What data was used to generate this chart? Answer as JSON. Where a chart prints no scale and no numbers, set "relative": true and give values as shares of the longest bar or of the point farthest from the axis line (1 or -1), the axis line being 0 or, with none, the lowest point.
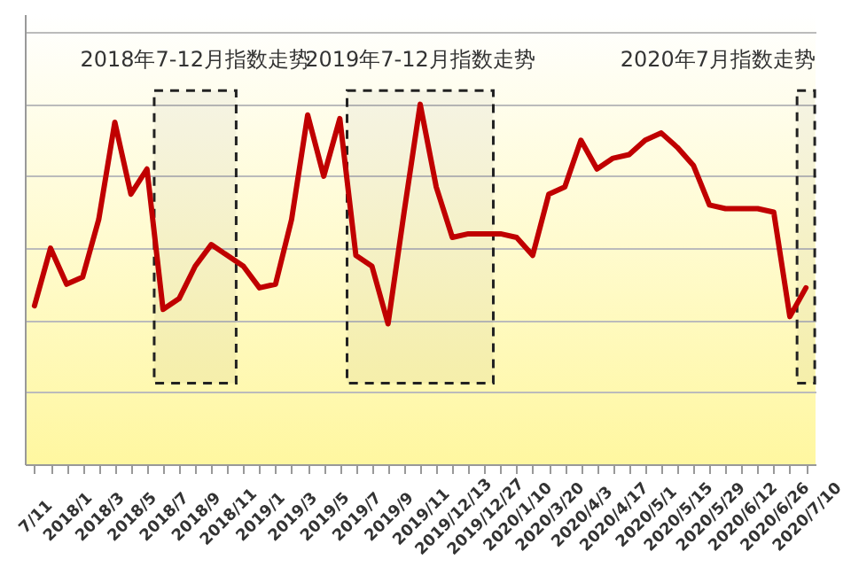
{
  "chart_data": {
    "type": "line",
    "relative": true,
    "grid": "y",
    "marker": "none",
    "line_style": "solid",
    "categories": [
      "7/11",
      null,
      "2018/1",
      null,
      "2018/3",
      null,
      "2018/5",
      null,
      "2018/7",
      null,
      "2018/9",
      null,
      "2018/11",
      null,
      "2019/1",
      null,
      "2019/3",
      null,
      "2019/5",
      null,
      "2019/7",
      null,
      "2019/9",
      null,
      "2019/11",
      null,
      "2019/12/13",
      null,
      "2019/12/27",
      null,
      "2020/1/10",
      null,
      "2020/3/20",
      null,
      "2020/4/3",
      null,
      "2020/4/17",
      null,
      "2020/5/1",
      null,
      "2020/5/15",
      null,
      "2020/5/29",
      null,
      "2020/6/12",
      null,
      "2020/6/26",
      null,
      "2020/7/10"
    ],
    "series": [
      {
        "color": "#c00000",
        "values": [
          0.44,
          0.6,
          0.5,
          0.52,
          0.68,
          0.95,
          0.75,
          0.82,
          0.43,
          0.46,
          0.55,
          0.61,
          0.58,
          0.55,
          0.49,
          0.5,
          0.68,
          0.97,
          0.8,
          0.96,
          0.58,
          0.55,
          0.39,
          0.7,
          1,
          0.77,
          0.63,
          0.64,
          0.64,
          0.64,
          0.63,
          0.58,
          0.75,
          0.77,
          0.9,
          0.82,
          0.85,
          0.86,
          0.9,
          0.92,
          0.88,
          0.83,
          0.72,
          0.71,
          0.71,
          0.71,
          0.7,
          0.41,
          0.49
        ]
      }
    ],
    "bands": [
      {
        "axis": "x",
        "from": "2018/7",
        "to": "2018/11",
        "label": "2018年7-12月指数走势"
      },
      {
        "axis": "x",
        "from": "2019/7",
        "to": "2019/12/27",
        "label": "2019年7-12月指数走势"
      },
      {
        "axis": "x",
        "from": "2020/7/10",
        "to": "2020/7/10",
        "label": "2020年7月指数走势"
      }
    ]
  }
}
